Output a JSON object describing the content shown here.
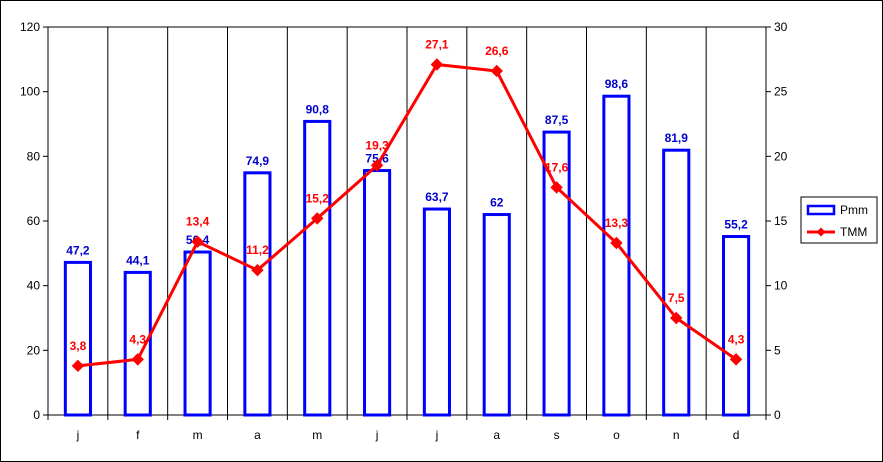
{
  "chart_data": {
    "type": "bar",
    "categories": [
      "j",
      "f",
      "m",
      "a",
      "m",
      "j",
      "j",
      "a",
      "s",
      "o",
      "n",
      "d"
    ],
    "series": [
      {
        "name": "Pmm",
        "type": "bar",
        "axis": "left",
        "color": "#0000ff",
        "values": [
          47.2,
          44.1,
          50.4,
          74.9,
          90.8,
          75.6,
          63.7,
          62,
          87.5,
          98.6,
          81.9,
          55.2
        ],
        "labels": [
          "47,2",
          "44,1",
          "50,4",
          "74,9",
          "90,8",
          "75,6",
          "63,7",
          "62",
          "87,5",
          "98,6",
          "81,9",
          "55,2"
        ]
      },
      {
        "name": "TMM",
        "type": "line",
        "axis": "right",
        "color": "#ff0000",
        "values": [
          3.8,
          4.3,
          13.4,
          11.2,
          15.2,
          19.3,
          27.1,
          26.6,
          17.6,
          13.3,
          7.5,
          4.3
        ],
        "labels": [
          "3,8",
          "4,3",
          "13,4",
          "11,2",
          "15,2",
          "19,3",
          "27,1",
          "26,6",
          "17,6",
          "13,3",
          "7,5",
          "4,3"
        ]
      }
    ],
    "ylim_left": [
      0,
      120
    ],
    "yticks_left": [
      "0",
      "20",
      "40",
      "60",
      "80",
      "100",
      "120"
    ],
    "ylim_right": [
      0,
      30
    ],
    "yticks_right": [
      "0",
      "5",
      "10",
      "15",
      "20",
      "25",
      "30"
    ],
    "grid": "vertical",
    "legend": "right",
    "title": "",
    "xlabel": "",
    "ylabel": ""
  }
}
